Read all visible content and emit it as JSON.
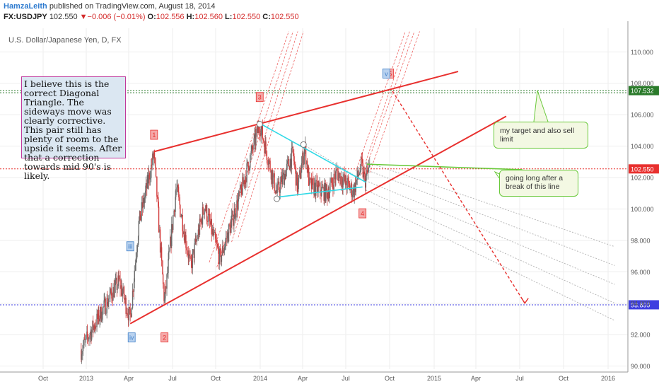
{
  "header": {
    "author": "HamzaLeith",
    "published": "published on TradingView.com, August 18, 2014",
    "symbol": "FX:USDJPY",
    "last": "102.550",
    "change": "−0.006 (−0.01%)",
    "o_label": "O:",
    "o": "102.556",
    "h_label": "H:",
    "h": "102.560",
    "l_label": "L:",
    "l": "102.550",
    "c_label": "C:",
    "c": "102.550"
  },
  "colors": {
    "red": "#e8302e",
    "cyan": "#2fd9e6",
    "green": "#69c93a",
    "blue_line": "#3e3ee0",
    "green_dotted": "#2a9a2a",
    "candle_up": "#6a6a6a",
    "candle_down": "#d23b3b"
  },
  "chart_data": {
    "type": "candlestick",
    "title": "U.S. Dollar/Japanese Yen, D, FX",
    "ylim": [
      89.8,
      111.5
    ],
    "y_ticks": [
      "90.000",
      "92.000",
      "94.000",
      "96.000",
      "98.000",
      "100.000",
      "102.000",
      "104.000",
      "106.000",
      "108.000",
      "110.000"
    ],
    "x_ticks": [
      "Oct",
      "2013",
      "Apr",
      "Jul",
      "Oct",
      "2014",
      "Apr",
      "Jul",
      "Oct",
      "2015",
      "Apr",
      "Jul",
      "Oct",
      "2016"
    ],
    "price_markers": [
      {
        "label": "107.532",
        "value": 107.532,
        "color": "#2a7a2a"
      },
      {
        "label": "102.550",
        "value": 102.55,
        "color": "#e8302e"
      },
      {
        "label": "93.899",
        "value": 93.899,
        "color": "#3e3ee0"
      }
    ],
    "wave_labels": [
      {
        "text": "1",
        "color": "#e8302e",
        "date": "2013-05-22",
        "price": 104.7
      },
      {
        "text": "2",
        "color": "#e8302e",
        "date": "2013-06-13",
        "price": 91.8
      },
      {
        "text": "3",
        "color": "#e8302e",
        "date": "2013-12-30",
        "price": 107.1
      },
      {
        "text": "4",
        "color": "#e8302e",
        "date": "2014-08-03",
        "price": 99.7
      },
      {
        "text": "5",
        "color": "#e8302e",
        "date": "2014-09-30",
        "price": 108.6
      },
      {
        "text": "iii",
        "color": "#3f7fc8",
        "date": "2013-04-02",
        "price": 97.6
      },
      {
        "text": "iv",
        "color": "#3f7fc8",
        "date": "2013-04-05",
        "price": 91.8
      },
      {
        "text": "v",
        "color": "#3f7fc8",
        "date": "2014-09-22",
        "price": 108.6
      }
    ],
    "trendlines": [
      {
        "name": "upper",
        "color": "#e8302e",
        "from": [
          "2013-05-22",
          103.65
        ],
        "to": [
          "2015-02-20",
          108.75
        ]
      },
      {
        "name": "lower",
        "color": "#e8302e",
        "from": [
          "2013-04-02",
          92.7
        ],
        "to": [
          "2015-06-01",
          105.9
        ]
      },
      {
        "name": "triangle-top",
        "color": "#2fd9e6",
        "from": [
          "2013-12-30",
          105.45
        ],
        "to": [
          "2014-08-10",
          101.7
        ]
      },
      {
        "name": "triangle-bottom",
        "color": "#2fd9e6",
        "from": [
          "2014-02-04",
          100.75
        ],
        "to": [
          "2014-08-03",
          101.4
        ]
      },
      {
        "name": "breakout",
        "color": "#69c93a",
        "from": [
          "2014-08-12",
          102.85
        ],
        "to": [
          "2015-07-05",
          102.5
        ]
      }
    ],
    "projection": {
      "color": "#e8302e",
      "from": [
        "2014-10-05",
        107.5
      ],
      "to": [
        "2015-07-10",
        94.0
      ]
    }
  },
  "notes": {
    "main": "I believe this is the correct Diagonal Triangle. The sideways move was clearly corrective. This pair still has plenty of room to the upside it seems. After that a correction towards mid 90's is likely.",
    "target": "my target and also sell limit",
    "long": "going long after a break of this line"
  }
}
